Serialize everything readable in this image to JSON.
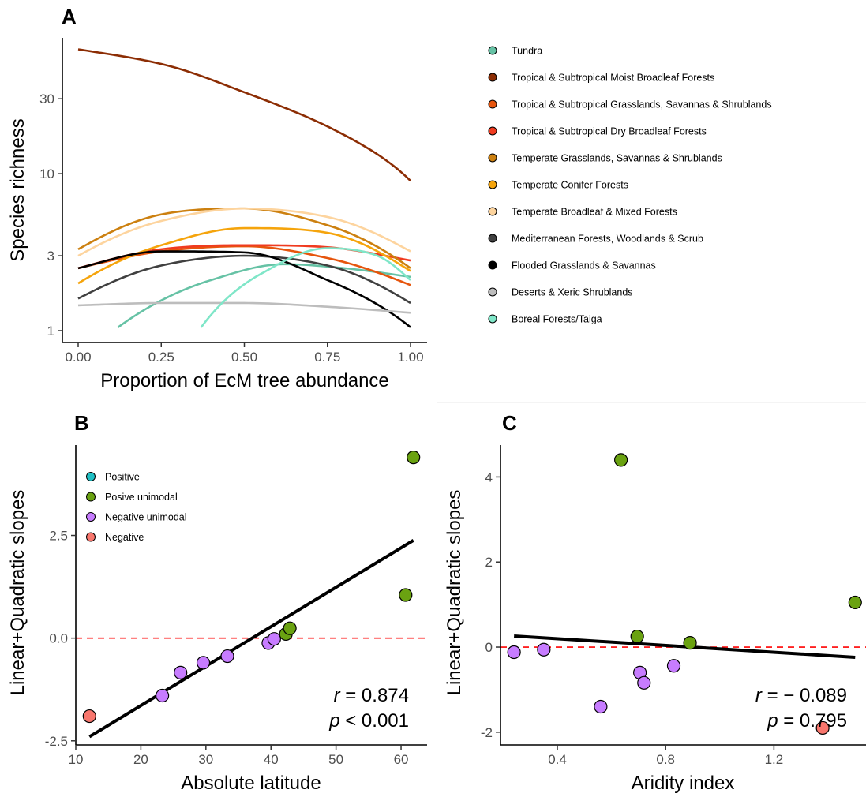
{
  "chart_data": [
    {
      "panel": "A",
      "type": "line",
      "xlabel": "Proportion of EcM tree abundance",
      "ylabel": "Species richness",
      "xlim": [
        0,
        1
      ],
      "ylim": [
        1,
        70
      ],
      "yscale": "log",
      "xticks": [
        0,
        0.25,
        0.5,
        0.75,
        1
      ],
      "xtick_labels": [
        "0.00",
        "0.25",
        "0.50",
        "0.75",
        "1.00"
      ],
      "yticks": [
        1,
        3,
        10,
        30
      ],
      "ytick_labels": [
        "1",
        "3",
        "10",
        "30"
      ],
      "grid": false,
      "legend_position": "right",
      "series": [
        {
          "name": "Tundra",
          "color": "#66c2a5",
          "x": [
            0.12,
            0.4,
            0.62,
            0.8,
            1.0
          ],
          "y": [
            1.05,
            2.1,
            2.65,
            2.5,
            2.2
          ]
        },
        {
          "name": "Tropical & Subtropical Moist Broadleaf Forests",
          "color": "#8c2d04",
          "x": [
            0.0,
            0.25,
            0.5,
            0.75,
            1.0
          ],
          "y": [
            62,
            50,
            33,
            20,
            9
          ]
        },
        {
          "name": "Tropical & Subtropical Grasslands, Savannas & Shrublands",
          "color": "#e6550d",
          "x": [
            0.0,
            0.25,
            0.5,
            0.75,
            1.0
          ],
          "y": [
            2.5,
            3.2,
            3.45,
            2.9,
            1.95
          ]
        },
        {
          "name": "Tropical & Subtropical Dry Broadleaf Forests",
          "color": "#f03b20",
          "x": [
            0.0,
            0.25,
            0.5,
            0.75,
            1.0
          ],
          "y": [
            2.5,
            3.3,
            3.5,
            3.4,
            2.8
          ]
        },
        {
          "name": "Temperate Grasslands, Savannas & Shrublands",
          "color": "#cc8010",
          "x": [
            0.0,
            0.25,
            0.5,
            0.75,
            1.0
          ],
          "y": [
            3.3,
            5.5,
            6.0,
            4.7,
            2.5
          ]
        },
        {
          "name": "Temperate Conifer Forests",
          "color": "#f5a40c",
          "x": [
            0.0,
            0.25,
            0.5,
            0.75,
            1.0
          ],
          "y": [
            2.0,
            3.5,
            4.5,
            4.2,
            2.4
          ]
        },
        {
          "name": "Temperate Broadleaf & Mixed Forests",
          "color": "#fdd49e",
          "x": [
            0.0,
            0.25,
            0.5,
            0.75,
            1.0
          ],
          "y": [
            3.0,
            5.0,
            6.0,
            5.3,
            3.2
          ]
        },
        {
          "name": "Mediterranean Forests, Woodlands & Scrub",
          "color": "#404040",
          "x": [
            0.0,
            0.25,
            0.5,
            0.75,
            1.0
          ],
          "y": [
            1.6,
            2.6,
            3.0,
            2.6,
            1.5
          ]
        },
        {
          "name": "Flooded Grasslands & Savannas",
          "color": "#000000",
          "x": [
            0.0,
            0.25,
            0.5,
            0.75,
            1.0
          ],
          "y": [
            2.5,
            3.2,
            3.15,
            2.1,
            1.05
          ]
        },
        {
          "name": "Deserts & Xeric Shrublands",
          "color": "#bdbdbd",
          "x": [
            0.0,
            0.25,
            0.5,
            0.75,
            1.0
          ],
          "y": [
            1.45,
            1.5,
            1.5,
            1.42,
            1.3
          ]
        },
        {
          "name": "Boreal Forests/Taiga",
          "color": "#7fe6c8",
          "x": [
            0.37,
            0.55,
            0.75,
            0.9,
            1.0
          ],
          "y": [
            1.05,
            2.3,
            3.35,
            3.0,
            2.1
          ]
        }
      ]
    },
    {
      "panel": "B",
      "type": "scatter",
      "xlabel": "Absolute latitude",
      "ylabel": "Linear+Quadratic slopes",
      "xlim": [
        10,
        64
      ],
      "ylim": [
        -2.6,
        4.7
      ],
      "xticks": [
        10,
        20,
        30,
        40,
        50,
        60
      ],
      "xtick_labels": [
        "10",
        "20",
        "30",
        "40",
        "50",
        "60"
      ],
      "yticks": [
        -2.5,
        0,
        2.5
      ],
      "ytick_labels": [
        "-2.5",
        "0.0",
        "2.5"
      ],
      "grid": false,
      "legend_position": "top-left",
      "legend": [
        {
          "name": "Positive",
          "color": "#1fbfc4"
        },
        {
          "name": "Posive unimodal",
          "color": "#6aa211"
        },
        {
          "name": "Negative unimodal",
          "color": "#c77cff"
        },
        {
          "name": "Negative",
          "color": "#f8766d"
        }
      ],
      "points": [
        {
          "x": 12.1,
          "y": -1.9,
          "group": "Negative"
        },
        {
          "x": 23.3,
          "y": -1.4,
          "group": "Negative unimodal"
        },
        {
          "x": 26.1,
          "y": -0.84,
          "group": "Negative unimodal"
        },
        {
          "x": 29.6,
          "y": -0.6,
          "group": "Negative unimodal"
        },
        {
          "x": 33.3,
          "y": -0.44,
          "group": "Negative unimodal"
        },
        {
          "x": 39.6,
          "y": -0.12,
          "group": "Negative unimodal"
        },
        {
          "x": 40.5,
          "y": -0.02,
          "group": "Negative unimodal"
        },
        {
          "x": 42.3,
          "y": 0.1,
          "group": "Posive unimodal"
        },
        {
          "x": 42.9,
          "y": 0.24,
          "group": "Posive unimodal"
        },
        {
          "x": 60.7,
          "y": 1.05,
          "group": "Posive unimodal"
        },
        {
          "x": 61.9,
          "y": 4.4,
          "group": "Posive unimodal"
        }
      ],
      "fit_line": {
        "x": [
          12.1,
          61.9
        ],
        "y": [
          -2.4,
          2.38
        ]
      },
      "reference_line_y": 0,
      "stats": {
        "r_label": "r",
        "r_value": " = 0.874",
        "p_label": "p",
        "p_value": " < 0.001"
      }
    },
    {
      "panel": "C",
      "type": "scatter",
      "xlabel": "Aridity index",
      "ylabel": "Linear+Quadratic slopes",
      "xlim": [
        0.19,
        1.54
      ],
      "ylim": [
        -2.3,
        4.75
      ],
      "xticks": [
        0.4,
        0.8,
        1.2
      ],
      "xtick_labels": [
        "0.4",
        "0.8",
        "1.2"
      ],
      "yticks": [
        -2,
        0,
        2,
        4
      ],
      "ytick_labels": [
        "-2",
        "0",
        "2",
        "4"
      ],
      "grid": false,
      "points": [
        {
          "x": 0.24,
          "y": -0.12,
          "group": "Negative unimodal"
        },
        {
          "x": 0.35,
          "y": -0.06,
          "group": "Negative unimodal"
        },
        {
          "x": 0.56,
          "y": -1.4,
          "group": "Negative unimodal"
        },
        {
          "x": 0.635,
          "y": 4.4,
          "group": "Posive unimodal"
        },
        {
          "x": 0.695,
          "y": 0.25,
          "group": "Posive unimodal"
        },
        {
          "x": 0.705,
          "y": -0.6,
          "group": "Negative unimodal"
        },
        {
          "x": 0.72,
          "y": -0.84,
          "group": "Negative unimodal"
        },
        {
          "x": 0.83,
          "y": -0.44,
          "group": "Negative unimodal"
        },
        {
          "x": 0.89,
          "y": 0.1,
          "group": "Posive unimodal"
        },
        {
          "x": 1.38,
          "y": -1.9,
          "group": "Negative"
        },
        {
          "x": 1.5,
          "y": 1.05,
          "group": "Posive unimodal"
        }
      ],
      "fit_line": {
        "x": [
          0.24,
          1.5
        ],
        "y": [
          0.26,
          -0.24
        ]
      },
      "reference_line_y": 0,
      "stats": {
        "r_label": "r",
        "r_value": " = − 0.089",
        "p_label": "p",
        "p_value": " = 0.795"
      }
    }
  ],
  "panel_labels": {
    "a": "A",
    "b": "B",
    "c": "C"
  }
}
